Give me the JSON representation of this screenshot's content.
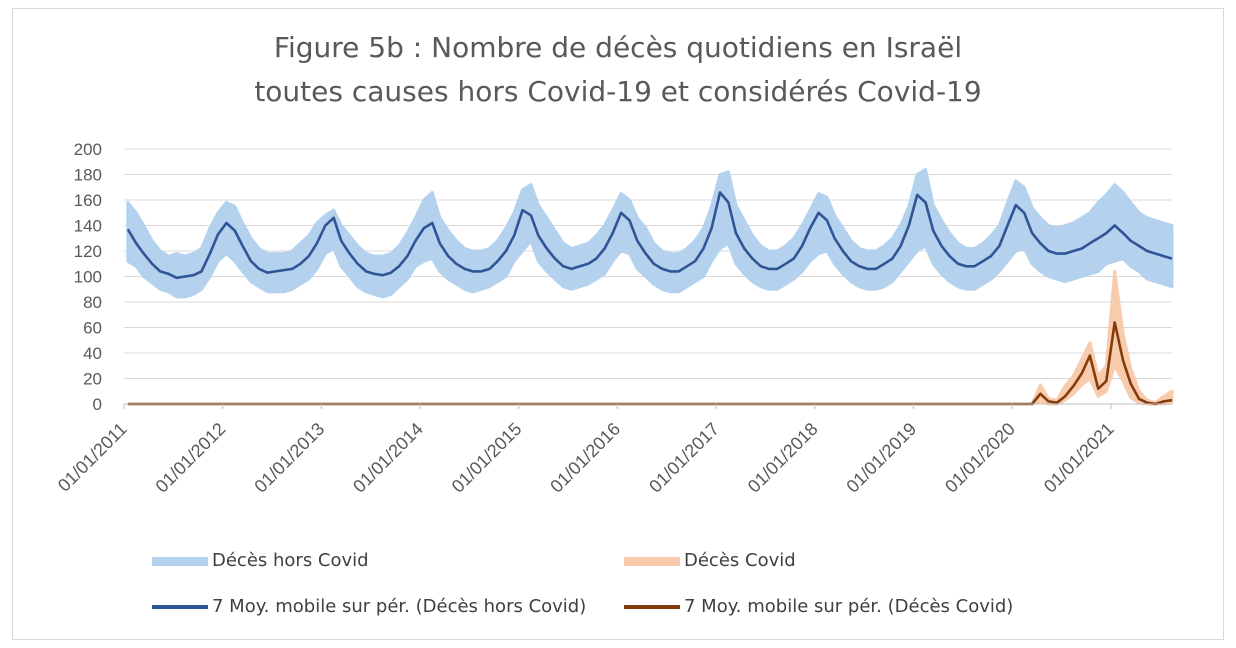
{
  "chart_data": {
    "type": "line",
    "title_line1": "Figure 5b : Nombre de décès quotidiens en Israël",
    "title_line2": "toutes causes hors Covid-19 et considérés Covid-19",
    "xlabel": "",
    "ylabel": "",
    "ylim": [
      0,
      200
    ],
    "y_ticks": [
      "0",
      "20",
      "40",
      "60",
      "80",
      "100",
      "120",
      "140",
      "160",
      "180",
      "200"
    ],
    "x_tick_labels": [
      "01/01/2011",
      "01/01/2012",
      "01/01/2013",
      "01/01/2014",
      "01/01/2015",
      "01/01/2016",
      "01/01/2017",
      "01/01/2018",
      "01/01/2019",
      "01/01/2020",
      "01/01/2021"
    ],
    "x_range": [
      "2011-01-01",
      "2021-08-15"
    ],
    "grid": "horizontal",
    "legend_position": "bottom",
    "resolution": "monthly (approximate readings of daily data)",
    "series": [
      {
        "name": "Décès hors Covid",
        "color": "#b4d2ee",
        "style": "band",
        "dates": [
          "2011-01",
          "2011-02",
          "2011-03",
          "2011-04",
          "2011-05",
          "2011-06",
          "2011-07",
          "2011-08",
          "2011-09",
          "2011-10",
          "2011-11",
          "2011-12",
          "2012-01",
          "2012-02",
          "2012-03",
          "2012-04",
          "2012-05",
          "2012-06",
          "2012-07",
          "2012-08",
          "2012-09",
          "2012-10",
          "2012-11",
          "2012-12",
          "2013-01",
          "2013-02",
          "2013-03",
          "2013-04",
          "2013-05",
          "2013-06",
          "2013-07",
          "2013-08",
          "2013-09",
          "2013-10",
          "2013-11",
          "2013-12",
          "2014-01",
          "2014-02",
          "2014-03",
          "2014-04",
          "2014-05",
          "2014-06",
          "2014-07",
          "2014-08",
          "2014-09",
          "2014-10",
          "2014-11",
          "2014-12",
          "2015-01",
          "2015-02",
          "2015-03",
          "2015-04",
          "2015-05",
          "2015-06",
          "2015-07",
          "2015-08",
          "2015-09",
          "2015-10",
          "2015-11",
          "2015-12",
          "2016-01",
          "2016-02",
          "2016-03",
          "2016-04",
          "2016-05",
          "2016-06",
          "2016-07",
          "2016-08",
          "2016-09",
          "2016-10",
          "2016-11",
          "2016-12",
          "2017-01",
          "2017-02",
          "2017-03",
          "2017-04",
          "2017-05",
          "2017-06",
          "2017-07",
          "2017-08",
          "2017-09",
          "2017-10",
          "2017-11",
          "2017-12",
          "2018-01",
          "2018-02",
          "2018-03",
          "2018-04",
          "2018-05",
          "2018-06",
          "2018-07",
          "2018-08",
          "2018-09",
          "2018-10",
          "2018-11",
          "2018-12",
          "2019-01",
          "2019-02",
          "2019-03",
          "2019-04",
          "2019-05",
          "2019-06",
          "2019-07",
          "2019-08",
          "2019-09",
          "2019-10",
          "2019-11",
          "2019-12",
          "2020-01",
          "2020-02",
          "2020-03",
          "2020-04",
          "2020-05",
          "2020-06",
          "2020-07",
          "2020-08",
          "2020-09",
          "2020-10",
          "2020-11",
          "2020-12",
          "2021-01",
          "2021-02",
          "2021-03",
          "2021-04",
          "2021-05",
          "2021-06",
          "2021-07",
          "2021-08"
        ],
        "low": [
          112,
          108,
          100,
          95,
          90,
          88,
          84,
          84,
          86,
          90,
          100,
          112,
          118,
          112,
          104,
          96,
          92,
          88,
          88,
          88,
          90,
          94,
          98,
          106,
          118,
          122,
          108,
          100,
          92,
          88,
          86,
          84,
          86,
          92,
          98,
          108,
          112,
          114,
          104,
          98,
          94,
          90,
          88,
          90,
          92,
          96,
          100,
          112,
          120,
          128,
          112,
          104,
          98,
          92,
          90,
          92,
          94,
          98,
          102,
          112,
          120,
          118,
          106,
          100,
          94,
          90,
          88,
          88,
          92,
          96,
          100,
          112,
          122,
          126,
          110,
          102,
          96,
          92,
          90,
          90,
          94,
          98,
          104,
          112,
          118,
          120,
          110,
          102,
          96,
          92,
          90,
          90,
          92,
          96,
          104,
          112,
          120,
          124,
          110,
          102,
          96,
          92,
          90,
          90,
          94,
          98,
          104,
          112,
          120,
          122,
          110,
          104,
          100,
          98,
          96,
          98,
          100,
          102,
          104,
          110,
          112,
          114,
          108,
          104,
          98,
          96,
          94,
          92
        ],
        "high": [
          158,
          150,
          140,
          128,
          120,
          116,
          118,
          116,
          118,
          122,
          138,
          150,
          158,
          155,
          142,
          130,
          122,
          118,
          118,
          118,
          120,
          126,
          132,
          142,
          148,
          152,
          140,
          132,
          124,
          118,
          116,
          116,
          118,
          124,
          134,
          146,
          160,
          166,
          146,
          136,
          128,
          122,
          120,
          120,
          122,
          128,
          138,
          150,
          168,
          172,
          156,
          146,
          136,
          126,
          122,
          124,
          126,
          132,
          140,
          152,
          165,
          160,
          146,
          138,
          126,
          120,
          118,
          118,
          122,
          128,
          138,
          155,
          180,
          182,
          156,
          144,
          132,
          124,
          120,
          120,
          124,
          130,
          140,
          152,
          165,
          162,
          148,
          138,
          128,
          122,
          120,
          120,
          124,
          130,
          140,
          155,
          180,
          184,
          156,
          144,
          134,
          126,
          122,
          122,
          126,
          132,
          140,
          158,
          175,
          170,
          154,
          146,
          140,
          138,
          140,
          142,
          146,
          150,
          158,
          164,
          172,
          166,
          158,
          150,
          146,
          144,
          142,
          140
        ]
      },
      {
        "name": "Décès Covid",
        "color": "#f8cbad",
        "style": "band",
        "dates": [
          "2020-03",
          "2020-04",
          "2020-05",
          "2020-06",
          "2020-07",
          "2020-08",
          "2020-09",
          "2020-10",
          "2020-11",
          "2020-12",
          "2021-01",
          "2021-02",
          "2021-03",
          "2021-04",
          "2021-05",
          "2021-06",
          "2021-07",
          "2021-08"
        ],
        "low": [
          0,
          2,
          0,
          0,
          3,
          8,
          15,
          20,
          6,
          10,
          30,
          18,
          5,
          1,
          0,
          0,
          0,
          1
        ],
        "high": [
          0,
          15,
          4,
          3,
          14,
          22,
          35,
          48,
          22,
          30,
          104,
          55,
          28,
          10,
          3,
          1,
          6,
          10
        ]
      },
      {
        "name": "7 Moy. mobile sur pér. (Décès hors Covid)",
        "color": "#2f5597",
        "style": "line",
        "dates": [
          "2011-01",
          "2011-02",
          "2011-03",
          "2011-04",
          "2011-05",
          "2011-06",
          "2011-07",
          "2011-08",
          "2011-09",
          "2011-10",
          "2011-11",
          "2011-12",
          "2012-01",
          "2012-02",
          "2012-03",
          "2012-04",
          "2012-05",
          "2012-06",
          "2012-07",
          "2012-08",
          "2012-09",
          "2012-10",
          "2012-11",
          "2012-12",
          "2013-01",
          "2013-02",
          "2013-03",
          "2013-04",
          "2013-05",
          "2013-06",
          "2013-07",
          "2013-08",
          "2013-09",
          "2013-10",
          "2013-11",
          "2013-12",
          "2014-01",
          "2014-02",
          "2014-03",
          "2014-04",
          "2014-05",
          "2014-06",
          "2014-07",
          "2014-08",
          "2014-09",
          "2014-10",
          "2014-11",
          "2014-12",
          "2015-01",
          "2015-02",
          "2015-03",
          "2015-04",
          "2015-05",
          "2015-06",
          "2015-07",
          "2015-08",
          "2015-09",
          "2015-10",
          "2015-11",
          "2015-12",
          "2016-01",
          "2016-02",
          "2016-03",
          "2016-04",
          "2016-05",
          "2016-06",
          "2016-07",
          "2016-08",
          "2016-09",
          "2016-10",
          "2016-11",
          "2016-12",
          "2017-01",
          "2017-02",
          "2017-03",
          "2017-04",
          "2017-05",
          "2017-06",
          "2017-07",
          "2017-08",
          "2017-09",
          "2017-10",
          "2017-11",
          "2017-12",
          "2018-01",
          "2018-02",
          "2018-03",
          "2018-04",
          "2018-05",
          "2018-06",
          "2018-07",
          "2018-08",
          "2018-09",
          "2018-10",
          "2018-11",
          "2018-12",
          "2019-01",
          "2019-02",
          "2019-03",
          "2019-04",
          "2019-05",
          "2019-06",
          "2019-07",
          "2019-08",
          "2019-09",
          "2019-10",
          "2019-11",
          "2019-12",
          "2020-01",
          "2020-02",
          "2020-03",
          "2020-04",
          "2020-05",
          "2020-06",
          "2020-07",
          "2020-08",
          "2020-09",
          "2020-10",
          "2020-11",
          "2020-12",
          "2021-01",
          "2021-02",
          "2021-03",
          "2021-04",
          "2021-05",
          "2021-06",
          "2021-07",
          "2021-08"
        ],
        "values": [
          137,
          126,
          118,
          110,
          104,
          102,
          99,
          100,
          101,
          104,
          118,
          133,
          142,
          136,
          124,
          112,
          106,
          103,
          104,
          105,
          106,
          110,
          116,
          126,
          140,
          146,
          128,
          118,
          110,
          104,
          102,
          101,
          103,
          108,
          116,
          128,
          138,
          142,
          126,
          116,
          110,
          106,
          104,
          104,
          106,
          112,
          120,
          132,
          152,
          148,
          132,
          122,
          114,
          108,
          106,
          108,
          110,
          114,
          122,
          134,
          150,
          144,
          128,
          118,
          110,
          106,
          104,
          104,
          108,
          112,
          122,
          138,
          166,
          158,
          134,
          122,
          114,
          108,
          106,
          106,
          110,
          114,
          124,
          138,
          150,
          144,
          130,
          120,
          112,
          108,
          106,
          106,
          110,
          114,
          124,
          140,
          164,
          158,
          136,
          124,
          116,
          110,
          108,
          108,
          112,
          116,
          124,
          140,
          156,
          150,
          134,
          126,
          120,
          118,
          118,
          120,
          122,
          126,
          130,
          134,
          140,
          134,
          128,
          124,
          120,
          118,
          116,
          114
        ]
      },
      {
        "name": "7 Moy. mobile sur pér. (Décès Covid)",
        "color": "#843c0c",
        "style": "line",
        "dates": [
          "2011-01",
          "2020-03",
          "2020-04",
          "2020-05",
          "2020-06",
          "2020-07",
          "2020-08",
          "2020-09",
          "2020-10",
          "2020-11",
          "2020-12",
          "2021-01",
          "2021-02",
          "2021-03",
          "2021-04",
          "2021-05",
          "2021-06",
          "2021-07",
          "2021-08"
        ],
        "values": [
          0,
          0,
          8,
          2,
          1,
          6,
          14,
          24,
          38,
          12,
          18,
          64,
          34,
          16,
          4,
          1,
          0,
          2,
          3
        ]
      }
    ]
  },
  "legend": {
    "items": [
      {
        "label": "Décès hors Covid"
      },
      {
        "label": "Décès Covid"
      },
      {
        "label": "7 Moy. mobile sur pér. (Décès hors Covid)"
      },
      {
        "label": "7 Moy. mobile sur pér. (Décès Covid)"
      }
    ]
  }
}
